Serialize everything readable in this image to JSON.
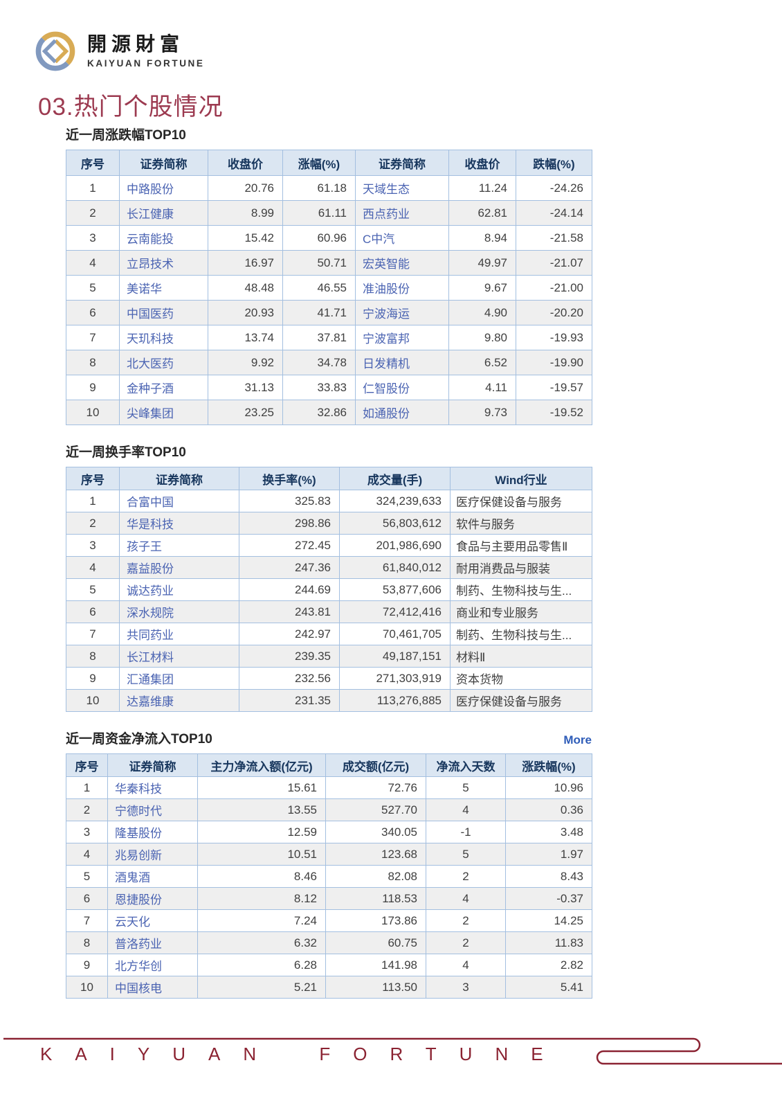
{
  "brand": {
    "title_cn": "開源財富",
    "title_en": "KAIYUAN FORTUNE"
  },
  "page_title": "03.热门个股情况",
  "sections": [
    {
      "title": "近一周涨跌幅TOP10",
      "table": {
        "headers": [
          "序号",
          "证券简称",
          "收盘价",
          "涨幅(%)",
          "证券简称",
          "收盘价",
          "跌幅(%)"
        ],
        "link_cols": [
          1,
          4
        ],
        "rows": [
          [
            "1",
            "中路股份",
            "20.76",
            "61.18",
            "天域生态",
            "11.24",
            "-24.26"
          ],
          [
            "2",
            "长江健康",
            "8.99",
            "61.11",
            "西点药业",
            "62.81",
            "-24.14"
          ],
          [
            "3",
            "云南能投",
            "15.42",
            "60.96",
            "C中汽",
            "8.94",
            "-21.58"
          ],
          [
            "4",
            "立昂技术",
            "16.97",
            "50.71",
            "宏英智能",
            "49.97",
            "-21.07"
          ],
          [
            "5",
            "美诺华",
            "48.48",
            "46.55",
            "准油股份",
            "9.67",
            "-21.00"
          ],
          [
            "6",
            "中国医药",
            "20.93",
            "41.71",
            "宁波海运",
            "4.90",
            "-20.20"
          ],
          [
            "7",
            "天玑科技",
            "13.74",
            "37.81",
            "宁波富邦",
            "9.80",
            "-19.93"
          ],
          [
            "8",
            "北大医药",
            "9.92",
            "34.78",
            "日发精机",
            "6.52",
            "-19.90"
          ],
          [
            "9",
            "金种子酒",
            "31.13",
            "33.83",
            "仁智股份",
            "4.11",
            "-19.57"
          ],
          [
            "10",
            "尖峰集团",
            "23.25",
            "32.86",
            "如通股份",
            "9.73",
            "-19.52"
          ]
        ]
      }
    },
    {
      "title": "近一周换手率TOP10",
      "table": {
        "headers": [
          "序号",
          "证券简称",
          "换手率(%)",
          "成交量(手)",
          "Wind行业"
        ],
        "link_cols": [
          1
        ],
        "rows": [
          [
            "1",
            "合富中国",
            "325.83",
            "324,239,633",
            "医疗保健设备与服务"
          ],
          [
            "2",
            "华是科技",
            "298.86",
            "56,803,612",
            "软件与服务"
          ],
          [
            "3",
            "孩子王",
            "272.45",
            "201,986,690",
            "食品与主要用品零售Ⅱ"
          ],
          [
            "4",
            "嘉益股份",
            "247.36",
            "61,840,012",
            "耐用消费品与服装"
          ],
          [
            "5",
            "诚达药业",
            "244.69",
            "53,877,606",
            "制药、生物科技与生..."
          ],
          [
            "6",
            "深水规院",
            "243.81",
            "72,412,416",
            "商业和专业服务"
          ],
          [
            "7",
            "共同药业",
            "242.97",
            "70,461,705",
            "制药、生物科技与生..."
          ],
          [
            "8",
            "长江材料",
            "239.35",
            "49,187,151",
            "材料Ⅱ"
          ],
          [
            "9",
            "汇通集团",
            "232.56",
            "271,303,919",
            "资本货物"
          ],
          [
            "10",
            "达嘉维康",
            "231.35",
            "113,276,885",
            "医疗保健设备与服务"
          ]
        ]
      }
    },
    {
      "title": "近一周资金净流入TOP10",
      "more_label": "More",
      "table": {
        "headers": [
          "序号",
          "证券简称",
          "主力净流入额(亿元)",
          "成交额(亿元)",
          "净流入天数",
          "涨跌幅(%)"
        ],
        "link_cols": [
          1
        ],
        "rows": [
          [
            "1",
            "华秦科技",
            "15.61",
            "72.76",
            "5",
            "10.96"
          ],
          [
            "2",
            "宁德时代",
            "13.55",
            "527.70",
            "4",
            "0.36"
          ],
          [
            "3",
            "隆基股份",
            "12.59",
            "340.05",
            "-1",
            "3.48"
          ],
          [
            "4",
            "兆易创新",
            "10.51",
            "123.68",
            "5",
            "1.97"
          ],
          [
            "5",
            "酒鬼酒",
            "8.46",
            "82.08",
            "2",
            "8.43"
          ],
          [
            "6",
            "恩捷股份",
            "8.12",
            "118.53",
            "4",
            "-0.37"
          ],
          [
            "7",
            "云天化",
            "7.24",
            "173.86",
            "2",
            "14.25"
          ],
          [
            "8",
            "普洛药业",
            "6.32",
            "60.75",
            "2",
            "11.83"
          ],
          [
            "9",
            "北方华创",
            "6.28",
            "141.98",
            "4",
            "2.82"
          ],
          [
            "10",
            "中国核电",
            "5.21",
            "113.50",
            "3",
            "5.41"
          ]
        ]
      }
    }
  ],
  "footer": {
    "wordmark": "KAIYUAN FORTUNE"
  },
  "colors": {
    "accent_red": "#9c3a50",
    "footer_red": "#8b2332",
    "table_header_bg": "#dbe6f2",
    "table_border": "#a3bfe0",
    "stock_link_blue": "#4a63b2",
    "more_link_blue": "#2e5cb8",
    "logo_gold": "#d8ab55",
    "logo_blue": "#8199bf"
  }
}
